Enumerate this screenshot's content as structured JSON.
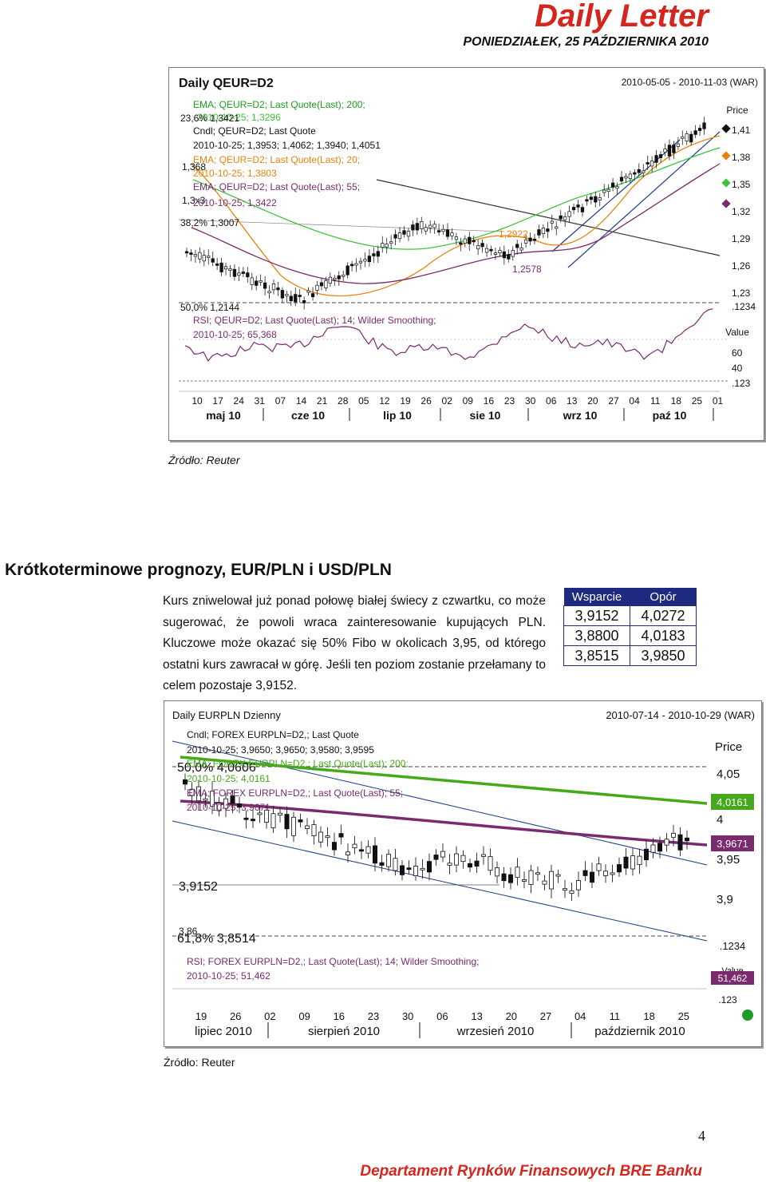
{
  "header": {
    "title": "Daily Letter",
    "date": "PONIEDZIAŁEK, 25 PAŹDZIERNIKA 2010"
  },
  "chart1": {
    "title": "Daily QEUR=D2",
    "range": "2010-05-05 - 2010-11-03 (WAR)",
    "price_label": "Price",
    "value_label": "Value",
    "legend": {
      "ema200_name": "EMA; QEUR=D2; Last Quote(Last); 200;",
      "ema200_val": "2010-10-25; 1,3296",
      "ema200_pct": "23,6%  1,3421",
      "cndl_name": "Cndl; QEUR=D2; Last Quote",
      "cndl_val": "2010-10-25; 1,3953; 1,4062; 1,3940; 1,4051",
      "ema20_name": "EMA; QEUR=D2; Last Quote(Last); 20;",
      "ema20_left": "1,368",
      "ema20_val": "2010-10-25; 1,3803",
      "ema55_name": "EMA; QEUR=D2; Last Quote(Last); 55;",
      "ema55_left": "1,3x3",
      "ema55_val": "2010-10-25; 1,3422",
      "fib382": "38,2%  1,3007",
      "fib50": "50,0%  1,2144",
      "rsi_name": "RSI; QEUR=D2; Last Quote(Last); 14; Wilder Smoothing;",
      "rsi_val": "2010-10-25; 65,368"
    },
    "annotations": {
      "low1": "1,2922",
      "low2": "1,2578"
    },
    "price_ticks": [
      "1,41",
      "1,38",
      "1,35",
      "1,32",
      "1,29",
      "1,26",
      "1,23"
    ],
    "rsi_ticks": [
      "60",
      "40"
    ],
    "pane_tags": [
      ".1234",
      ".123"
    ],
    "day_ticks": [
      "10",
      "17",
      "24",
      "31",
      "07",
      "14",
      "21",
      "28",
      "05",
      "12",
      "19",
      "26",
      "02",
      "09",
      "16",
      "23",
      "30",
      "06",
      "13",
      "20",
      "27",
      "04",
      "11",
      "18",
      "25",
      "01"
    ],
    "months": [
      "maj 10",
      "cze 10",
      "lip 10",
      "sie 10",
      "wrz 10",
      "paź 10"
    ],
    "source": "Źródło: Reuter"
  },
  "section": {
    "title": "Krótkoterminowe prognozy, EUR/PLN i USD/PLN",
    "body": "Kurs zniwelował już ponad połowę białej świecy z czwartku, co może sugerować, że powoli wraca zainteresowanie kupujących PLN. Kluczowe może okazać się 50% Fibo w okolicach 3,95, od którego ostatni kurs zawracał w górę. Jeśli ten poziom zostanie przełamany to celem pozostaje 3,9152."
  },
  "levels": {
    "support_header": "Wsparcie",
    "resistance_header": "Opór",
    "rows": [
      {
        "support": "3,9152",
        "resistance": "4,0272"
      },
      {
        "support": "3,8800",
        "resistance": "4,0183"
      },
      {
        "support": "3,8515",
        "resistance": "3,9850"
      }
    ]
  },
  "chart2": {
    "title": "Daily EURPLN Dzienny",
    "range": "2010-07-14 - 2010-10-29 (WAR)",
    "price_label": "Price",
    "legend": {
      "cndl_name": "Cndl; FOREX EURPLN=D2,; Last Quote",
      "cndl_val": "2010-10-25; 3,9650; 3,9650; 3,9580; 3,9595",
      "fib50": "50,0%  4,0606",
      "ema200_name": "EMA; FOREX EURPLN=D2,; Last Quote(Last); 200;",
      "ema200_val": "2010-10-25; 4,0161",
      "ema55_name": "EMA; FOREX EURPLN=D2,; Last Quote(Last); 55;",
      "ema55_val": "2010-10-25; 3,9671",
      "level_3_9152": "3,9152",
      "level_3_86": "3,86",
      "fib618": "61,8%  3,8514",
      "rsi_name": "RSI; FOREX EURPLN=D2,; Last Quote(Last); 14; Wilder Smoothing;",
      "rsi_val": "2010-10-25; 51,462"
    },
    "price_ticks": [
      "4,05",
      "4",
      "3,95",
      "3,9"
    ],
    "tags": {
      "ema200": "4,0161",
      "ema55": "3,9671",
      "rsi": "51,462",
      "value": "Value"
    },
    "pane_tags": [
      ".1234",
      ".123"
    ],
    "day_ticks": [
      "19",
      "26",
      "02",
      "09",
      "16",
      "23",
      "30",
      "06",
      "13",
      "20",
      "27",
      "04",
      "11",
      "18",
      "25"
    ],
    "months": [
      "lipiec 2010",
      "sierpień 2010",
      "wrzesień 2010",
      "październik 2010"
    ],
    "source": "Źródło: Reuter"
  },
  "footer": {
    "page": "4",
    "text": "Departament Rynków Finansowych BRE Banku"
  },
  "colors": {
    "brand_red": "#d6251c",
    "ema20": "#e8840c",
    "ema55": "#7b2a6f",
    "ema200_chart1": "#3cc43c",
    "ema200_chart2": "#46a91c",
    "table_header": "#1e2a80"
  }
}
